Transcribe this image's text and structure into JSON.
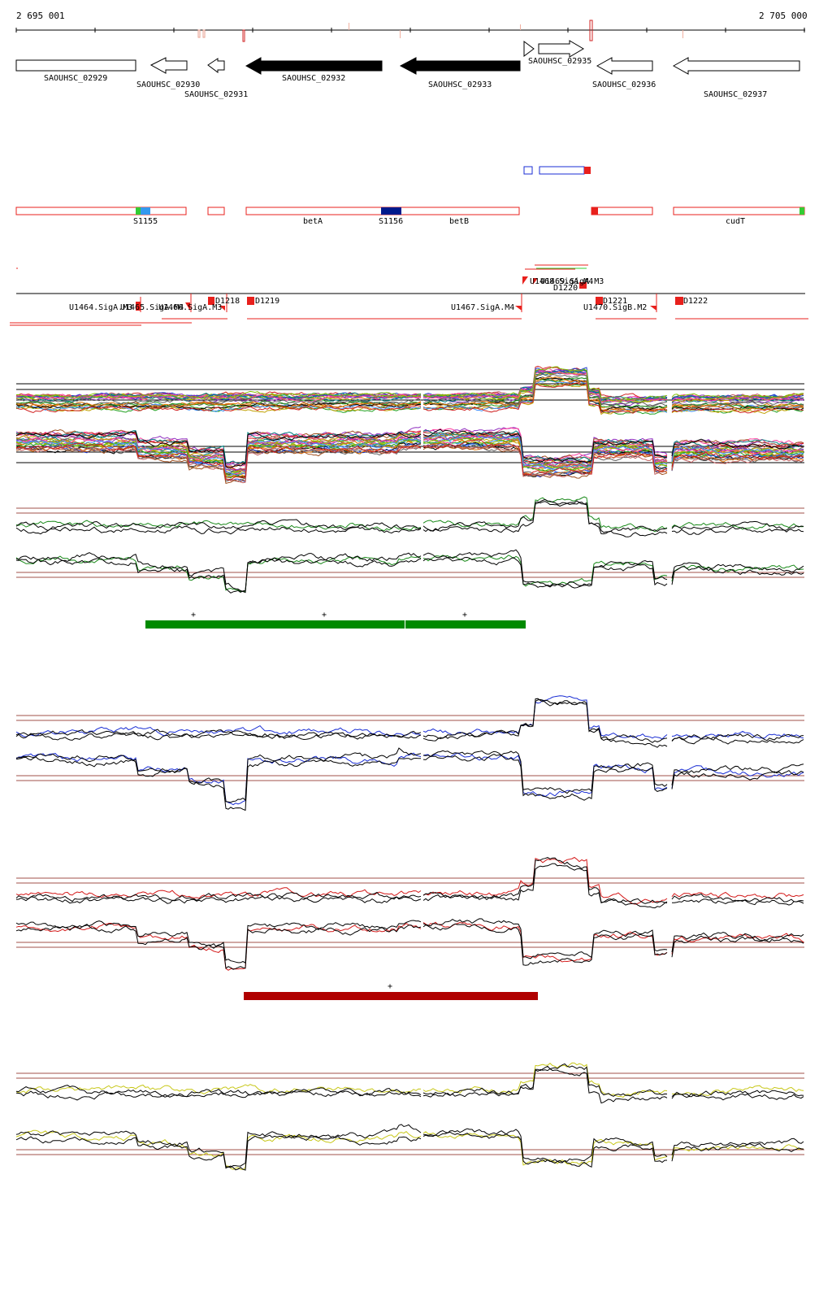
{
  "genome_browser": {
    "coordinates": {
      "start": "2 695 001",
      "end": "2 705 000"
    },
    "genes": [
      {
        "name": "SAOUHSC_02929",
        "strand": "+",
        "fill": "none"
      },
      {
        "name": "SAOUHSC_02930",
        "strand": "-",
        "fill": "none"
      },
      {
        "name": "SAOUHSC_02931",
        "strand": "-",
        "fill": "none"
      },
      {
        "name": "SAOUHSC_02932",
        "strand": "-",
        "fill": "#000000"
      },
      {
        "name": "SAOUHSC_02933",
        "strand": "-",
        "fill": "#000000"
      },
      {
        "name": "SAOUHSC_02935",
        "strand": "+",
        "fill": "none"
      },
      {
        "name": "SAOUHSC_02936",
        "strand": "-",
        "fill": "none"
      },
      {
        "name": "SAOUHSC_02937",
        "strand": "-",
        "fill": "none"
      }
    ],
    "annotations": [
      {
        "name": "S1155"
      },
      {
        "name": "betA"
      },
      {
        "name": "S1156"
      },
      {
        "name": "betB"
      },
      {
        "name": "cudT"
      }
    ],
    "upper_features": [
      {
        "name": "U1468.SigA.M4"
      },
      {
        "name": "U1469.SigA.M3"
      },
      {
        "name": "D1220"
      }
    ],
    "lower_features": [
      {
        "name": "U1464.SigA.M3"
      },
      {
        "name": "U1465.SigA.M4"
      },
      {
        "name": "U1466.SigA.M3"
      },
      {
        "name": "D1218"
      },
      {
        "name": "D1219"
      },
      {
        "name": "U1467.SigA.M4"
      },
      {
        "name": "U1470.SigB.M2"
      },
      {
        "name": "D1221"
      },
      {
        "name": "D1222"
      }
    ],
    "segment_marks": {
      "green": [
        "+",
        "+",
        "+"
      ],
      "red": [
        "+"
      ]
    },
    "colors": {
      "feature_red": "#e8201c",
      "dark_blue": "#001a8c",
      "segment_green": "#008a00",
      "segment_red": "#b00000",
      "trace_green": "#1a8a1a",
      "trace_blue": "#1a2ed4",
      "trace_red": "#d41a1a",
      "trace_yellow": "#c8c81a",
      "threshold": "#a0504a"
    }
  }
}
